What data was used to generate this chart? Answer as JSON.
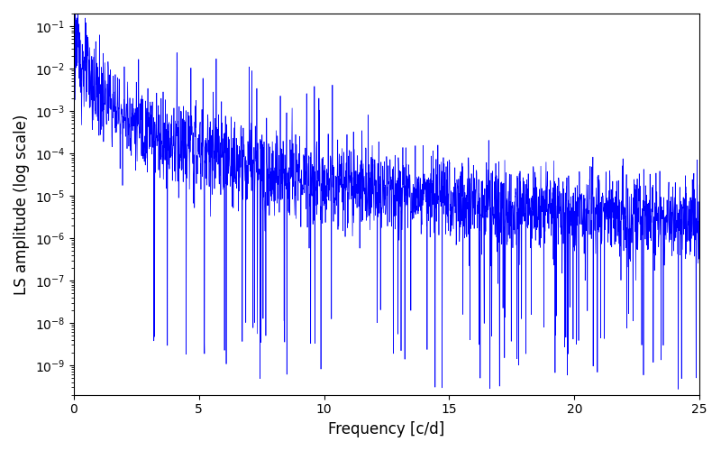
{
  "xlabel": "Frequency [c/d]",
  "ylabel": "LS amplitude (log scale)",
  "xlim": [
    0,
    25
  ],
  "ylim_log": [
    2e-10,
    0.2
  ],
  "line_color": "#0000ff",
  "line_width": 0.5,
  "figsize": [
    8.0,
    5.0
  ],
  "dpi": 100,
  "seed": 123,
  "n_points": 2500,
  "freq_max": 25.0,
  "alpha_power": 2.5,
  "envelope_scale": 0.008,
  "noise_floor": 8e-07,
  "log_noise_sigma": 1.2,
  "transition_freq": 5.0
}
